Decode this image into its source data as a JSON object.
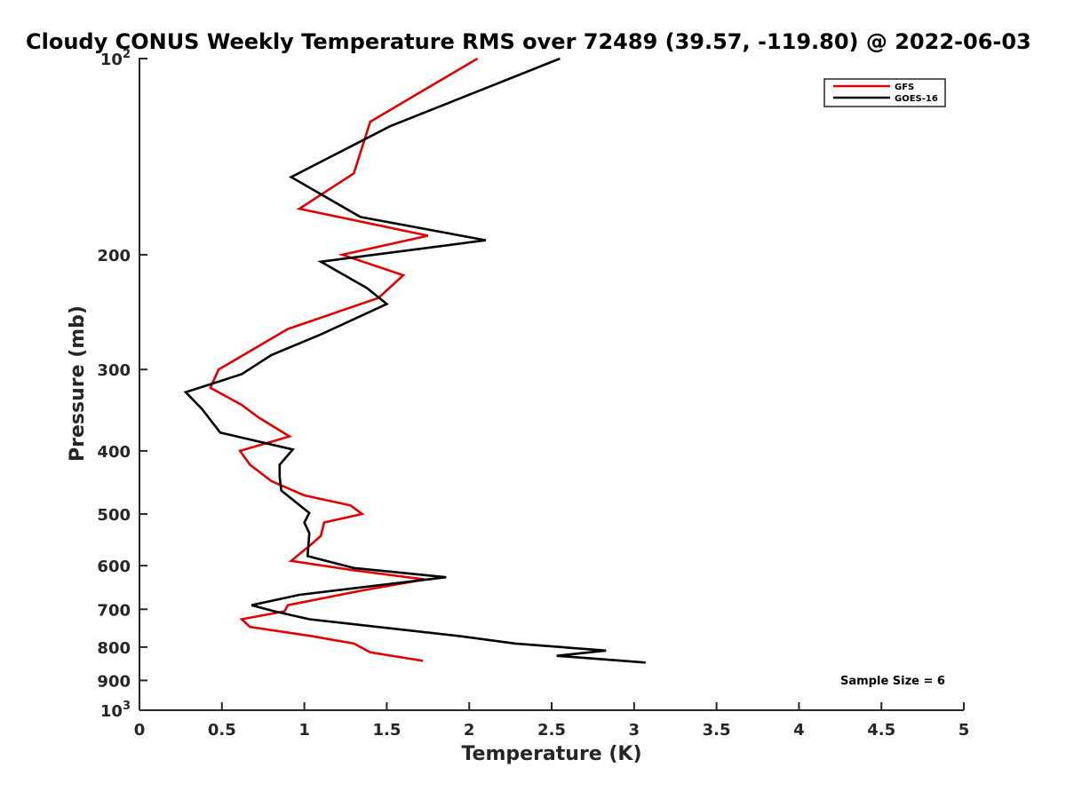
{
  "chart_data": {
    "type": "line",
    "title": "Cloudy CONUS Weekly Temperature RMS over 72489 (39.57, -119.80) @ 2022-06-03",
    "xlabel": "Temperature (K)",
    "ylabel": "Pressure (mb)",
    "xlim": [
      0,
      5
    ],
    "ylim": [
      100,
      1000
    ],
    "y_scale": "log",
    "y_reversed": true,
    "x_ticks": [
      "0",
      "0.5",
      "1",
      "1.5",
      "2",
      "2.5",
      "3",
      "3.5",
      "4",
      "4.5",
      "5"
    ],
    "x_tick_values": [
      0,
      0.5,
      1,
      1.5,
      2,
      2.5,
      3,
      3.5,
      4,
      4.5,
      5
    ],
    "y_ticks": [
      {
        "value": 100,
        "base": "10",
        "exp": "2"
      },
      {
        "value": 200,
        "label": "200"
      },
      {
        "value": 300,
        "label": "300"
      },
      {
        "value": 400,
        "label": "400"
      },
      {
        "value": 500,
        "label": "500"
      },
      {
        "value": 600,
        "label": "600"
      },
      {
        "value": 700,
        "label": "700"
      },
      {
        "value": 800,
        "label": "800"
      },
      {
        "value": 900,
        "label": "900"
      },
      {
        "value": 1000,
        "base": "10",
        "exp": "3"
      }
    ],
    "grid": false,
    "legend_position": "top-right",
    "series": [
      {
        "name": "GFS",
        "color": "#e00000",
        "points": [
          [
            2.05,
            100
          ],
          [
            1.4,
            125
          ],
          [
            1.3,
            150
          ],
          [
            0.97,
            170
          ],
          [
            1.75,
            187
          ],
          [
            1.23,
            200
          ],
          [
            1.6,
            215
          ],
          [
            1.45,
            233
          ],
          [
            0.9,
            260
          ],
          [
            0.48,
            300
          ],
          [
            0.43,
            320
          ],
          [
            0.62,
            340
          ],
          [
            0.72,
            355
          ],
          [
            0.91,
            380
          ],
          [
            0.61,
            400
          ],
          [
            0.67,
            420
          ],
          [
            0.8,
            445
          ],
          [
            1.0,
            468
          ],
          [
            1.28,
            485
          ],
          [
            1.35,
            500
          ],
          [
            1.12,
            515
          ],
          [
            1.1,
            540
          ],
          [
            1.04,
            557
          ],
          [
            0.92,
            590
          ],
          [
            1.3,
            610
          ],
          [
            1.73,
            630
          ],
          [
            1.35,
            655
          ],
          [
            0.9,
            690
          ],
          [
            0.88,
            705
          ],
          [
            0.62,
            725
          ],
          [
            0.67,
            745
          ],
          [
            1.05,
            770
          ],
          [
            1.3,
            790
          ],
          [
            1.4,
            815
          ],
          [
            1.72,
            840
          ]
        ]
      },
      {
        "name": "GOES-16",
        "color": "#000000",
        "points": [
          [
            2.55,
            100
          ],
          [
            1.52,
            127
          ],
          [
            0.92,
            152
          ],
          [
            1.34,
            175
          ],
          [
            2.1,
            190
          ],
          [
            1.1,
            205
          ],
          [
            1.38,
            225
          ],
          [
            1.5,
            238
          ],
          [
            1.1,
            265
          ],
          [
            0.8,
            285
          ],
          [
            0.62,
            305
          ],
          [
            0.28,
            325
          ],
          [
            0.38,
            345
          ],
          [
            0.49,
            375
          ],
          [
            0.93,
            398
          ],
          [
            0.85,
            420
          ],
          [
            0.85,
            438
          ],
          [
            0.86,
            460
          ],
          [
            1.03,
            498
          ],
          [
            1.0,
            515
          ],
          [
            1.03,
            535
          ],
          [
            1.02,
            580
          ],
          [
            1.3,
            605
          ],
          [
            1.86,
            625
          ],
          [
            0.97,
            665
          ],
          [
            0.68,
            690
          ],
          [
            0.82,
            705
          ],
          [
            1.03,
            725
          ],
          [
            1.95,
            770
          ],
          [
            2.28,
            790
          ],
          [
            2.83,
            810
          ],
          [
            2.53,
            825
          ],
          [
            3.07,
            845
          ]
        ]
      }
    ],
    "annotation": "Sample Size = 6"
  }
}
